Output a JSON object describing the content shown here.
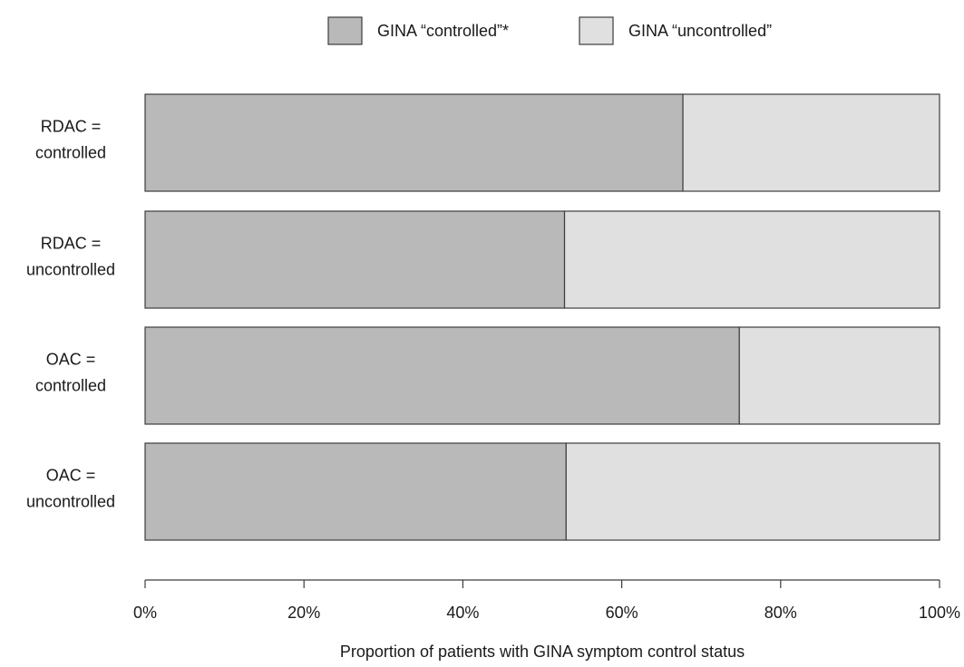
{
  "chart_data": {
    "type": "bar",
    "orientation": "horizontal",
    "stacked": true,
    "categories": [
      [
        "RDAC =",
        "controlled"
      ],
      [
        "RDAC =",
        "uncontrolled"
      ],
      [
        "OAC =",
        "controlled"
      ],
      [
        "OAC =",
        "uncontrolled"
      ]
    ],
    "series": [
      {
        "name": "GINA “controlled”*",
        "color": "#b9b9b9",
        "values": [
          67.7,
          52.8,
          74.8,
          53.0
        ]
      },
      {
        "name": "GINA “uncontrolled”",
        "color": "#e0e0e0",
        "values": [
          32.3,
          47.2,
          25.2,
          47.0
        ]
      }
    ],
    "xlabel": "Proportion of patients with GINA symptom control status",
    "ylabel": "",
    "xlim": [
      0,
      100
    ],
    "xticks": [
      0,
      20,
      40,
      60,
      80,
      100
    ],
    "xtick_labels": [
      "0%",
      "20%",
      "40%",
      "60%",
      "80%",
      "100%"
    ],
    "legend_position": "top",
    "grid": false
  }
}
